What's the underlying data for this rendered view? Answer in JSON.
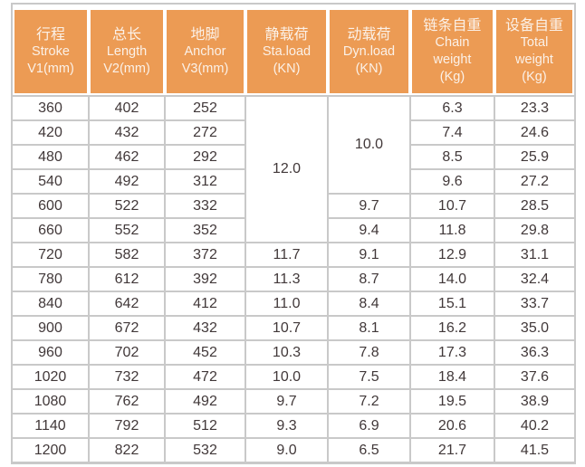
{
  "colors": {
    "header_bg": "#EC9B54",
    "header_text": "#FBF1E8",
    "grid_line": "#C9C9C9",
    "cell_text": "#413839",
    "background": "#FFFFFF"
  },
  "chart_data": {
    "type": "table",
    "title": "",
    "columns": [
      {
        "id": "stroke",
        "lines": [
          "行程",
          "Stroke",
          "V1(mm)"
        ]
      },
      {
        "id": "length",
        "lines": [
          "总长",
          "Length",
          "V2(mm)"
        ]
      },
      {
        "id": "anchor",
        "lines": [
          "地脚",
          "Anchor",
          "V3(mm)"
        ]
      },
      {
        "id": "sta-load",
        "lines": [
          "静载荷",
          "Sta.load",
          "(KN)"
        ]
      },
      {
        "id": "dyn-load",
        "lines": [
          "动载荷",
          "Dyn.load",
          "(KN)"
        ]
      },
      {
        "id": "chain-weight",
        "lines": [
          "链条自重",
          "Chain",
          "weight",
          "(Kg)"
        ]
      },
      {
        "id": "total-weight",
        "lines": [
          "设备自重",
          "Total",
          "weight",
          "(Kg)"
        ]
      }
    ],
    "merged_cells": [
      {
        "column": "sta-load",
        "value": "12.0",
        "start_row": 0,
        "rowspan": 6
      },
      {
        "column": "dyn-load",
        "value": "10.0",
        "start_row": 0,
        "rowspan": 4
      }
    ],
    "rows": [
      [
        "360",
        "402",
        "252",
        {
          "value": "12.0",
          "rowspan": 6
        },
        {
          "value": "10.0",
          "rowspan": 4
        },
        "6.3",
        "23.3"
      ],
      [
        "420",
        "432",
        "272",
        null,
        null,
        "7.4",
        "24.6"
      ],
      [
        "480",
        "462",
        "292",
        null,
        null,
        "8.5",
        "25.9"
      ],
      [
        "540",
        "492",
        "312",
        null,
        null,
        "9.6",
        "27.2"
      ],
      [
        "600",
        "522",
        "332",
        null,
        "9.7",
        "10.7",
        "28.5"
      ],
      [
        "660",
        "552",
        "352",
        null,
        "9.4",
        "11.8",
        "29.8"
      ],
      [
        "720",
        "582",
        "372",
        "11.7",
        "9.1",
        "12.9",
        "31.1"
      ],
      [
        "780",
        "612",
        "392",
        "11.3",
        "8.7",
        "14.0",
        "32.4"
      ],
      [
        "840",
        "642",
        "412",
        "11.0",
        "8.4",
        "15.1",
        "33.7"
      ],
      [
        "900",
        "672",
        "432",
        "10.7",
        "8.1",
        "16.2",
        "35.0"
      ],
      [
        "960",
        "702",
        "452",
        "10.3",
        "7.8",
        "17.3",
        "36.3"
      ],
      [
        "1020",
        "732",
        "472",
        "10.0",
        "7.5",
        "18.4",
        "37.6"
      ],
      [
        "1080",
        "762",
        "492",
        "9.7",
        "7.2",
        "19.5",
        "38.9"
      ],
      [
        "1140",
        "792",
        "512",
        "9.3",
        "6.9",
        "20.6",
        "40.2"
      ],
      [
        "1200",
        "822",
        "532",
        "9.0",
        "6.5",
        "21.7",
        "41.5"
      ]
    ]
  }
}
